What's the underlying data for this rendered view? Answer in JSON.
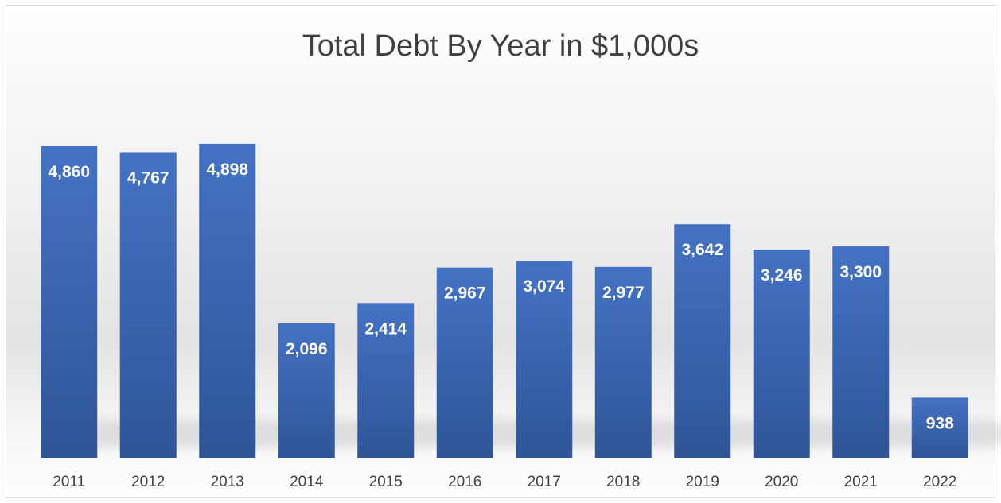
{
  "chart_data": {
    "type": "bar",
    "title": "Total Debt By Year in $1,000s",
    "xlabel": "",
    "ylabel": "",
    "categories": [
      "2011",
      "2012",
      "2013",
      "2014",
      "2015",
      "2016",
      "2017",
      "2018",
      "2019",
      "2020",
      "2021",
      "2022"
    ],
    "values": [
      4860,
      4767,
      4898,
      2096,
      2414,
      2967,
      3074,
      2977,
      3642,
      3246,
      3300,
      938
    ],
    "data_labels": [
      "4,860",
      "4,767",
      "4,898",
      "2,096",
      "2,414",
      "2,967",
      "3,074",
      "2,977",
      "3,642",
      "3,246",
      "3,300",
      "938"
    ],
    "ylim": [
      0,
      6000
    ],
    "grid": false,
    "legend": "none",
    "colors": {
      "bar_top": "#4472c4",
      "bar_bottom": "#2f5597",
      "label": "#ffffff",
      "axis_text": "#404040"
    }
  }
}
